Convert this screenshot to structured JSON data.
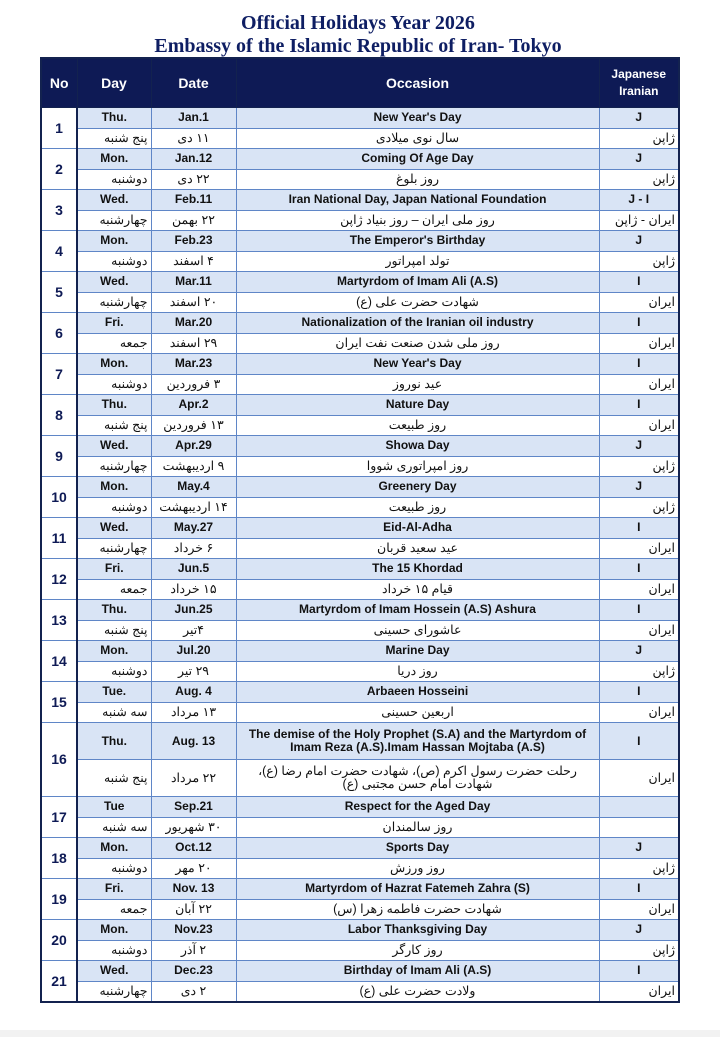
{
  "header": {
    "title": "Official Holidays Year 2026",
    "subtitle": "Embassy of the Islamic Republic of Iran- Tokyo"
  },
  "columns": {
    "no": "No",
    "day": "Day",
    "date": "Date",
    "occasion": "Occasion",
    "type": [
      "Japanese",
      "Iranian"
    ]
  },
  "holidays": [
    {
      "no": "1",
      "en": {
        "day": "Thu.",
        "date": "Jan.1",
        "occasion": "New Year's Day",
        "type": "J"
      },
      "fa": {
        "day": "پنج شنبه",
        "date": "۱۱ دی",
        "occasion": "سال نوی میلادی",
        "type": "ژاپن"
      }
    },
    {
      "no": "2",
      "en": {
        "day": "Mon.",
        "date": "Jan.12",
        "occasion": "Coming Of Age Day",
        "type": "J"
      },
      "fa": {
        "day": "دوشنبه",
        "date": "۲۲ دی",
        "occasion": "روز بلوغ",
        "type": "ژاپن"
      }
    },
    {
      "no": "3",
      "en": {
        "day": "Wed.",
        "date": "Feb.11",
        "occasion": "Iran National Day, Japan National Foundation",
        "type": "J - I"
      },
      "fa": {
        "day": "چهارشنبه",
        "date": "۲۲ بهمن",
        "occasion": "روز ملی ایران – روز بنیاد ژاپن",
        "type": "ایران - ژاپن"
      }
    },
    {
      "no": "4",
      "en": {
        "day": "Mon.",
        "date": "Feb.23",
        "occasion": "The Emperor's Birthday",
        "type": "J"
      },
      "fa": {
        "day": "دوشنبه",
        "date": "۴ اسفند",
        "occasion": "تولد امپراتور",
        "type": "ژاپن"
      }
    },
    {
      "no": "5",
      "en": {
        "day": "Wed.",
        "date": "Mar.11",
        "occasion": "Martyrdom of Imam Ali (A.S)",
        "type": "I"
      },
      "fa": {
        "day": "چهارشنبه",
        "date": "۲۰ اسفند",
        "occasion": "شهادت حضرت علی (ع)",
        "type": "ایران"
      }
    },
    {
      "no": "6",
      "en": {
        "day": "Fri.",
        "date": "Mar.20",
        "occasion": "Nationalization of the Iranian oil industry",
        "type": "I"
      },
      "fa": {
        "day": "جمعه",
        "date": "۲۹ اسفند",
        "occasion": "روز ملی شدن صنعت نفت ایران",
        "type": "ایران"
      }
    },
    {
      "no": "7",
      "en": {
        "day": "Mon.",
        "date": "Mar.23",
        "occasion": "New Year's Day",
        "type": "I"
      },
      "fa": {
        "day": "دوشنبه",
        "date": "۳ فروردین",
        "occasion": "عید نوروز",
        "type": "ایران"
      }
    },
    {
      "no": "8",
      "en": {
        "day": "Thu.",
        "date": "Apr.2",
        "occasion": "Nature Day",
        "type": "I"
      },
      "fa": {
        "day": "پنج شنبه",
        "date": "۱۳ فروردین",
        "occasion": "روز طبیعت",
        "type": "ایران"
      }
    },
    {
      "no": "9",
      "en": {
        "day": "Wed.",
        "date": "Apr.29",
        "occasion": "Showa Day",
        "type": "J"
      },
      "fa": {
        "day": "چهارشنبه",
        "date": "۹ اردیبهشت",
        "occasion": "روز امپراتوری شووا",
        "type": "ژاپن"
      }
    },
    {
      "no": "10",
      "en": {
        "day": "Mon.",
        "date": "May.4",
        "occasion": "Greenery Day",
        "type": "J"
      },
      "fa": {
        "day": "دوشنبه",
        "date": "۱۴ اردیبهشت",
        "occasion": "روز طبیعت",
        "type": "ژاپن"
      }
    },
    {
      "no": "11",
      "en": {
        "day": "Wed.",
        "date": "May.27",
        "occasion": "Eid-Al-Adha",
        "type": "I"
      },
      "fa": {
        "day": "چهارشنبه",
        "date": "۶ خرداد",
        "occasion": "عید سعید قربان",
        "type": "ایران"
      }
    },
    {
      "no": "12",
      "en": {
        "day": "Fri.",
        "date": "Jun.5",
        "occasion": "The 15 Khordad",
        "type": "I"
      },
      "fa": {
        "day": "جمعه",
        "date": "۱۵ خرداد",
        "occasion": "قیام ۱۵ خرداد",
        "type": "ایران"
      }
    },
    {
      "no": "13",
      "en": {
        "day": "Thu.",
        "date": "Jun.25",
        "occasion": "Martyrdom of Imam Hossein (A.S) Ashura",
        "type": "I"
      },
      "fa": {
        "day": "پنج شنبه",
        "date": "۴تیر",
        "occasion": "عاشورای حسینی",
        "type": "ایران"
      }
    },
    {
      "no": "14",
      "en": {
        "day": "Mon.",
        "date": "Jul.20",
        "occasion": "Marine Day",
        "type": "J"
      },
      "fa": {
        "day": "دوشنبه",
        "date": "۲۹ تیر",
        "occasion": "روز دریا",
        "type": "ژاپن"
      }
    },
    {
      "no": "15",
      "en": {
        "day": "Tue.",
        "date": "Aug. 4",
        "occasion": "Arbaeen Hosseini",
        "type": "I"
      },
      "fa": {
        "day": "سه شنبه",
        "date": "۱۳ مرداد",
        "occasion": "اربعین حسینی",
        "type": "ایران"
      }
    },
    {
      "no": "16",
      "en": {
        "day": "Thu.",
        "date": "Aug. 13",
        "occasion": "The demise of the Holy Prophet (S.A) and the  Martyrdom of Imam Reza (A.S).Imam Hassan Mojtaba (A.S)",
        "type": "I"
      },
      "fa": {
        "day": "پنج شنبه",
        "date": "۲۲ مرداد",
        "occasion": "رحلت حضرت رسول اکرم (ص)، شهادت حضرت امام رضا (ع)، شهادت امام حسن مجتبی (ع)",
        "type": "ایران"
      }
    },
    {
      "no": "17",
      "en": {
        "day": "Tue",
        "date": "Sep.21",
        "occasion": "Respect for the Aged Day"
      },
      "fa": {
        "day": "سه شنبه",
        "date": "۳۰ شهریور",
        "occasion": "روز سالمندان"
      }
    },
    {
      "no": "18",
      "en": {
        "day": "Mon.",
        "date": "Oct.12",
        "occasion": "Sports Day",
        "type": "J"
      },
      "fa": {
        "day": "دوشنبه",
        "date": "۲۰ مهر",
        "occasion": "روز ورزش",
        "type": "ژاپن"
      }
    },
    {
      "no": "19",
      "en": {
        "day": "Fri.",
        "date": "Nov. 13",
        "occasion": "Martyrdom of Hazrat Fatemeh Zahra (S)",
        "type": "I"
      },
      "fa": {
        "day": "جمعه",
        "date": "۲۲ آبان",
        "occasion": "شهادت حضرت فاطمه زهرا (س)",
        "type": "ایران"
      }
    },
    {
      "no": "20",
      "en": {
        "day": "Mon.",
        "date": "Nov.23",
        "occasion": "Labor Thanksgiving Day",
        "type": "J"
      },
      "fa": {
        "day": "دوشنبه",
        "date": "۲ آذر",
        "occasion": "روز کارگر",
        "type": "ژاپن"
      }
    },
    {
      "no": "21",
      "en": {
        "day": "Wed.",
        "date": "Dec.23",
        "occasion": "Birthday of Imam Ali (A.S)",
        "type": "I"
      },
      "fa": {
        "day": "چهارشنبه",
        "date": "۲ دی",
        "occasion": "ولادت حضرت علی (ع)",
        "type": "ایران"
      }
    }
  ]
}
